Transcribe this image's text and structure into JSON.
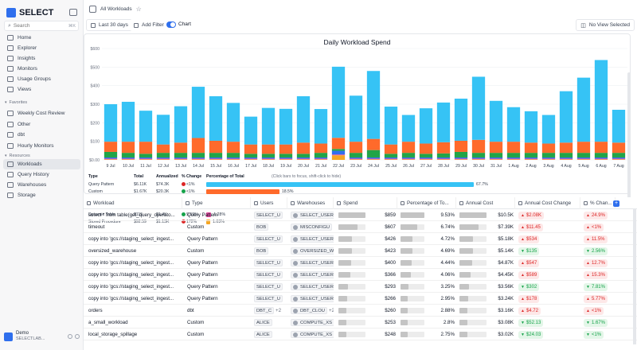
{
  "app": {
    "name": "SELECT",
    "search_placeholder": "Search",
    "search_shortcut": "⌘K"
  },
  "sidebar": {
    "main_items": [
      {
        "label": "Home",
        "icon": "home-icon"
      },
      {
        "label": "Explorer",
        "icon": "explorer-icon"
      },
      {
        "label": "Insights",
        "icon": "insights-icon"
      },
      {
        "label": "Monitors",
        "icon": "monitors-icon"
      },
      {
        "label": "Usage Groups",
        "icon": "usage-groups-icon"
      },
      {
        "label": "Views",
        "icon": "views-icon"
      }
    ],
    "favorites_label": "Favorites",
    "favorites": [
      {
        "label": "Weekly Cost Review"
      },
      {
        "label": "Other"
      },
      {
        "label": "dbt"
      },
      {
        "label": "Hourly Monitors"
      }
    ],
    "resources_label": "Resources",
    "resources": [
      {
        "label": "Workloads",
        "active": true
      },
      {
        "label": "Query History"
      },
      {
        "label": "Warehouses"
      },
      {
        "label": "Storage"
      }
    ],
    "user": {
      "name": "Demo",
      "org": "SELECTLAB..."
    }
  },
  "header": {
    "breadcrumb": "All Workloads"
  },
  "toolbar": {
    "date_range": "Last 30 days",
    "add_filter": "Add Filter",
    "chart_toggle": "Chart",
    "view": "No View Selected"
  },
  "chart_data": {
    "type": "bar",
    "stacked": true,
    "title": "Daily Workload Spend",
    "ylim": [
      0,
      600
    ],
    "y_ticks": [
      "$0.00",
      "$100",
      "$200",
      "$300",
      "$400",
      "$500",
      "$600"
    ],
    "categories": [
      "9 Jul",
      "10 Jul",
      "11 Jul",
      "12 Jul",
      "13 Jul",
      "14 Jul",
      "15 Jul",
      "16 Jul",
      "17 Jul",
      "18 Jul",
      "19 Jul",
      "20 Jul",
      "21 Jul",
      "22 Jul",
      "23 Jul",
      "24 Jul",
      "25 Jul",
      "26 Jul",
      "27 Jul",
      "28 Jul",
      "29 Jul",
      "30 Jul",
      "31 Jul",
      "1 Aug",
      "2 Aug",
      "3 Aug",
      "4 Aug",
      "5 Aug",
      "6 Aug",
      "7 Aug"
    ],
    "colors": {
      "Stored Procedure": "#f5a623",
      "Dynamic Table": "#e64da0",
      "Task": "#2f6fed",
      "dbt": "#22a447",
      "Custom": "#ff6a2b",
      "Query Pattern": "#36c3f5"
    },
    "series": [
      {
        "name": "Stored Procedure",
        "values": [
          3,
          3,
          3,
          3,
          3,
          3,
          3,
          3,
          3,
          3,
          3,
          3,
          3,
          25,
          3,
          3,
          3,
          3,
          3,
          3,
          3,
          3,
          3,
          3,
          3,
          3,
          3,
          3,
          3,
          3
        ]
      },
      {
        "name": "Dynamic Table",
        "values": [
          4,
          4,
          4,
          4,
          4,
          4,
          4,
          4,
          4,
          4,
          4,
          4,
          4,
          4,
          4,
          4,
          4,
          4,
          4,
          4,
          4,
          4,
          4,
          4,
          4,
          4,
          4,
          4,
          4,
          4
        ]
      },
      {
        "name": "Task",
        "values": [
          6,
          6,
          6,
          6,
          6,
          6,
          6,
          6,
          6,
          6,
          6,
          6,
          6,
          20,
          6,
          6,
          6,
          6,
          6,
          6,
          6,
          6,
          6,
          6,
          6,
          6,
          6,
          6,
          6,
          6
        ]
      },
      {
        "name": "dbt",
        "values": [
          30,
          25,
          20,
          25,
          25,
          25,
          25,
          25,
          20,
          20,
          20,
          20,
          25,
          10,
          25,
          40,
          20,
          25,
          20,
          22,
          30,
          25,
          25,
          25,
          25,
          25,
          25,
          25,
          25,
          25
        ]
      },
      {
        "name": "Custom",
        "values": [
          55,
          60,
          65,
          45,
          55,
          80,
          65,
          60,
          50,
          50,
          50,
          60,
          50,
          60,
          60,
          60,
          50,
          60,
          55,
          60,
          60,
          70,
          60,
          60,
          55,
          50,
          55,
          60,
          60,
          55
        ]
      },
      {
        "name": "Query Pattern",
        "values": [
          202,
          215,
          167,
          160,
          196,
          276,
          240,
          209,
          150,
          197,
          192,
          250,
          186,
          383,
          248,
          366,
          204,
          144,
          190,
          214,
          227,
          340,
          220,
          186,
          169,
          154,
          277,
          345,
          440,
          177
        ]
      }
    ],
    "breakdown": {
      "headers": [
        "Type",
        "Total",
        "Annualized",
        "% Change",
        "Percentage of Total",
        "(Click bars to focus, shift-click to hide)"
      ],
      "rows": [
        {
          "type": "Query Pattern",
          "total": "$6.11K",
          "annualized": "$74.3K",
          "change": "<1%",
          "dir": "up",
          "pct": 67.7,
          "pct_label": "67.7%",
          "color": "#36c3f5"
        },
        {
          "type": "Custom",
          "total": "$1.67K",
          "annualized": "$20.3K",
          "change": "<1%",
          "dir": "down",
          "pct": 18.5,
          "pct_label": "18.5%",
          "color": "#ff6a2b"
        },
        {
          "type": "dbt",
          "total": "$624",
          "annualized": "$7.6K",
          "change": "20.4%",
          "dir": "down",
          "pct": 6.92,
          "pct_label": "6.92%",
          "color": "#22a447"
        },
        {
          "type": "Task",
          "total": "$204",
          "annualized": "$2.49K",
          "change": "36.9%",
          "dir": "down",
          "pct": 2.27,
          "pct_label": "2.27%",
          "color": "#2f6fed"
        },
        {
          "type": "Dynamic Table",
          "total": "$115",
          "annualized": "$1.4K",
          "change": "9.59%",
          "dir": "down",
          "pct": 1.28,
          "pct_label": "1.28%",
          "color": "#e64da0"
        },
        {
          "type": "Stored Procedure",
          "total": "$92.59",
          "annualized": "$1.13K",
          "change": "172%",
          "dir": "up",
          "pct": 1.03,
          "pct_label": "1.03%",
          "color": "#f5a623"
        }
      ]
    }
  },
  "table": {
    "headers": [
      "Workload",
      "Type",
      "Users",
      "Warehouses",
      "Spend",
      "Percentage of To...",
      "Annual Cost",
      "Annual Cost Change",
      "% Chan...",
      "A"
    ],
    "rows": [
      {
        "workload": "select * from table(get_query_operato...",
        "type": "Query Pattern",
        "users": "SELECT_U",
        "warehouse": "SELECT_USER",
        "spend": "$859",
        "spend_pct": 100,
        "pct": "9.53%",
        "annual": "$10.5K",
        "annual_pct": 100,
        "cost_change": "$2.08K",
        "cost_dir": "up",
        "pct_change": "24.9%",
        "pct_dir": "up"
      },
      {
        "workload": "timeout",
        "type": "Custom",
        "users": "BOB",
        "warehouse": "MISCONFIGU",
        "spend": "$607",
        "spend_pct": 70,
        "pct": "6.74%",
        "annual": "$7.39K",
        "annual_pct": 70,
        "cost_change": "$11.45",
        "cost_dir": "up",
        "pct_change": "<1%",
        "pct_dir": "up"
      },
      {
        "workload": "copy into 'gcs://staging_select_ingest...",
        "type": "Query Pattern",
        "users": "SELECT_U",
        "warehouse": "SELECT_USER",
        "spend": "$426",
        "spend_pct": 50,
        "pct": "4.72%",
        "annual": "$5.18K",
        "annual_pct": 49,
        "cost_change": "$534",
        "cost_dir": "up",
        "pct_change": "11.5%",
        "pct_dir": "up"
      },
      {
        "workload": "oversized_warehouse",
        "type": "Custom",
        "users": "BOB",
        "warehouse": "OVERSIZED_W",
        "spend": "$423",
        "spend_pct": 49,
        "pct": "4.69%",
        "annual": "$5.14K",
        "annual_pct": 49,
        "cost_change": "$135",
        "cost_dir": "down",
        "pct_change": "2.56%",
        "pct_dir": "down"
      },
      {
        "workload": "copy into 'gcs://staging_select_ingest...",
        "type": "Query Pattern",
        "users": "SELECT_U",
        "warehouse": "SELECT_USER",
        "spend": "$400",
        "spend_pct": 47,
        "pct": "4.44%",
        "annual": "$4.87K",
        "annual_pct": 46,
        "cost_change": "$547",
        "cost_dir": "up",
        "pct_change": "12.7%",
        "pct_dir": "up"
      },
      {
        "workload": "copy into 'gcs://staging_select_ingest...",
        "type": "Query Pattern",
        "users": "SELECT_U",
        "warehouse": "SELECT_USER",
        "spend": "$366",
        "spend_pct": 43,
        "pct": "4.06%",
        "annual": "$4.45K",
        "annual_pct": 42,
        "cost_change": "$589",
        "cost_dir": "up",
        "pct_change": "15.3%",
        "pct_dir": "up"
      },
      {
        "workload": "copy into 'gcs://staging_select_ingest...",
        "type": "Query Pattern",
        "users": "SELECT_U",
        "warehouse": "SELECT_USER",
        "spend": "$293",
        "spend_pct": 34,
        "pct": "3.25%",
        "annual": "$3.56K",
        "annual_pct": 34,
        "cost_change": "$302",
        "cost_dir": "down",
        "pct_change": "7.81%",
        "pct_dir": "down"
      },
      {
        "workload": "copy into 'gcs://staging_select_ingest...",
        "type": "Query Pattern",
        "users": "SELECT_U",
        "warehouse": "SELECT_USER",
        "spend": "$266",
        "spend_pct": 31,
        "pct": "2.95%",
        "annual": "$3.24K",
        "annual_pct": 31,
        "cost_change": "$178",
        "cost_dir": "up",
        "pct_change": "5.77%",
        "pct_dir": "up"
      },
      {
        "workload": "orders",
        "type": "dbt",
        "users": "DBT_C",
        "users_more": "+2",
        "warehouse": "DBT_CLOU",
        "warehouse_more": "+2",
        "spend": "$260",
        "spend_pct": 30,
        "pct": "2.88%",
        "annual": "$3.16K",
        "annual_pct": 30,
        "cost_change": "$4.72",
        "cost_dir": "up",
        "pct_change": "<1%",
        "pct_dir": "up"
      },
      {
        "workload": "a_small_workload",
        "type": "Custom",
        "users": "ALICE",
        "warehouse": "COMPUTE_XS",
        "spend": "$253",
        "spend_pct": 29,
        "pct": "2.8%",
        "annual": "$3.08K",
        "annual_pct": 29,
        "cost_change": "$52.13",
        "cost_dir": "down",
        "pct_change": "1.67%",
        "pct_dir": "down"
      },
      {
        "workload": "local_storage_spillage",
        "type": "Custom",
        "users": "ALICE",
        "warehouse": "COMPUTE_XS",
        "spend": "$248",
        "spend_pct": 29,
        "pct": "2.75%",
        "annual": "$3.02K",
        "annual_pct": 29,
        "cost_change": "$24.03",
        "cost_dir": "down",
        "pct_change": "<1%",
        "pct_dir": "down"
      }
    ]
  }
}
